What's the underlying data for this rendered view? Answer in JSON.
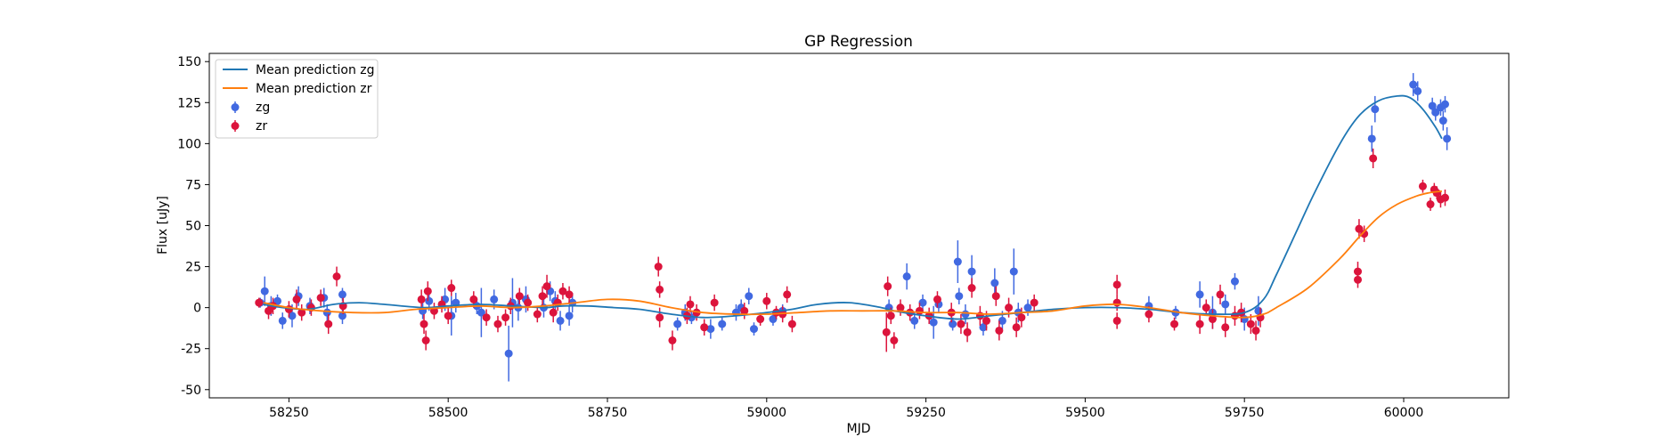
{
  "chart_data": {
    "type": "scatter",
    "title": "GP Regression",
    "xlabel": "MJD",
    "ylabel": "Flux [uJy]",
    "xlim": [
      58125,
      60165
    ],
    "ylim": [
      -55,
      155
    ],
    "xticks": [
      58250,
      58500,
      58750,
      59000,
      59250,
      59500,
      59750,
      60000
    ],
    "yticks": [
      -50,
      -25,
      0,
      25,
      50,
      75,
      100,
      125,
      150
    ],
    "grid": false,
    "legend_position": "top-left",
    "colors": {
      "zg": "#4169e1",
      "zr": "#dc143c",
      "mean_zg": "#1f77b4",
      "mean_zr": "#ff7f0e"
    },
    "series": [
      {
        "name": "Mean prediction zg",
        "kind": "line",
        "x": [
          58210,
          58240,
          58280,
          58320,
          58360,
          58400,
          58460,
          58500,
          58550,
          58600,
          58650,
          58680,
          58720,
          58760,
          58800,
          58850,
          58900,
          58950,
          59000,
          59040,
          59080,
          59130,
          59180,
          59200,
          59250,
          59300,
          59350,
          59400,
          59450,
          59500,
          59550,
          59600,
          59650,
          59700,
          59750,
          59780,
          59800,
          59830,
          59860,
          59900,
          59930,
          59960,
          59990,
          60010,
          60030,
          60050,
          60060
        ],
        "y": [
          2,
          0,
          -1,
          2,
          3,
          2,
          0,
          1,
          2,
          1,
          0,
          1,
          1,
          0,
          -1,
          -4,
          -6,
          -5,
          -3,
          -1,
          2,
          3,
          0,
          -2,
          -5,
          -7,
          -5,
          -3,
          -1,
          0,
          0,
          -1,
          -3,
          -4,
          -3,
          5,
          20,
          45,
          70,
          100,
          117,
          126,
          129,
          128,
          121,
          110,
          103
        ]
      },
      {
        "name": "Mean prediction zr",
        "kind": "line",
        "x": [
          58210,
          58250,
          58300,
          58350,
          58400,
          58450,
          58500,
          58550,
          58600,
          58650,
          58700,
          58750,
          58800,
          58850,
          58900,
          58950,
          59000,
          59050,
          59100,
          59150,
          59200,
          59250,
          59300,
          59350,
          59400,
          59450,
          59500,
          59550,
          59600,
          59650,
          59700,
          59750,
          59780,
          59800,
          59850,
          59900,
          59930,
          59960,
          59990,
          60020,
          60040,
          60060
        ],
        "y": [
          3,
          0,
          -2,
          -3,
          -3,
          -1,
          0,
          1,
          0,
          1,
          3,
          5,
          4,
          0,
          -3,
          -4,
          -4,
          -3,
          -2,
          -2,
          -2,
          -3,
          -3,
          -4,
          -3,
          -2,
          1,
          2,
          0,
          -3,
          -5,
          -6,
          -4,
          0,
          12,
          30,
          43,
          55,
          63,
          68,
          70,
          71
        ]
      },
      {
        "name": "zg",
        "kind": "errorbar",
        "points": [
          {
            "x": 58205,
            "y": 3,
            "err": 3
          },
          {
            "x": 58212,
            "y": 10,
            "err": 9
          },
          {
            "x": 58222,
            "y": 1,
            "err": 6
          },
          {
            "x": 58232,
            "y": 4,
            "err": 4
          },
          {
            "x": 58240,
            "y": -8,
            "err": 5
          },
          {
            "x": 58255,
            "y": -5,
            "err": 7
          },
          {
            "x": 58265,
            "y": 7,
            "err": 6
          },
          {
            "x": 58283,
            "y": 1,
            "err": 5
          },
          {
            "x": 58305,
            "y": 6,
            "err": 6
          },
          {
            "x": 58310,
            "y": -3,
            "err": 5
          },
          {
            "x": 58334,
            "y": 8,
            "err": 4
          },
          {
            "x": 58334,
            "y": -5,
            "err": 5
          },
          {
            "x": 58460,
            "y": -2,
            "err": 5
          },
          {
            "x": 58470,
            "y": 4,
            "err": 6
          },
          {
            "x": 58495,
            "y": 5,
            "err": 7
          },
          {
            "x": 58505,
            "y": -5,
            "err": 12
          },
          {
            "x": 58512,
            "y": 3,
            "err": 6
          },
          {
            "x": 58545,
            "y": 1,
            "err": 5
          },
          {
            "x": 58552,
            "y": -3,
            "err": 15
          },
          {
            "x": 58572,
            "y": 5,
            "err": 6
          },
          {
            "x": 58595,
            "y": -28,
            "err": 17
          },
          {
            "x": 58601,
            "y": 3,
            "err": 15
          },
          {
            "x": 58610,
            "y": 0,
            "err": 8
          },
          {
            "x": 58622,
            "y": 5,
            "err": 8
          },
          {
            "x": 58650,
            "y": 0,
            "err": 6
          },
          {
            "x": 58660,
            "y": 10,
            "err": 6
          },
          {
            "x": 58668,
            "y": 4,
            "err": 6
          },
          {
            "x": 58676,
            "y": -8,
            "err": 6
          },
          {
            "x": 58690,
            "y": -5,
            "err": 6
          },
          {
            "x": 58695,
            "y": 3,
            "err": 6
          },
          {
            "x": 58860,
            "y": -10,
            "err": 4
          },
          {
            "x": 58872,
            "y": -3,
            "err": 5
          },
          {
            "x": 58882,
            "y": -6,
            "err": 4
          },
          {
            "x": 58912,
            "y": -13,
            "err": 6
          },
          {
            "x": 58930,
            "y": -10,
            "err": 4
          },
          {
            "x": 58952,
            "y": -3,
            "err": 5
          },
          {
            "x": 58960,
            "y": 0,
            "err": 5
          },
          {
            "x": 58972,
            "y": 7,
            "err": 5
          },
          {
            "x": 58980,
            "y": -13,
            "err": 4
          },
          {
            "x": 59010,
            "y": -7,
            "err": 4
          },
          {
            "x": 59025,
            "y": -2,
            "err": 4
          },
          {
            "x": 59192,
            "y": 0,
            "err": 5
          },
          {
            "x": 59220,
            "y": 19,
            "err": 8
          },
          {
            "x": 59232,
            "y": -8,
            "err": 5
          },
          {
            "x": 59245,
            "y": 3,
            "err": 5
          },
          {
            "x": 59262,
            "y": -9,
            "err": 10
          },
          {
            "x": 59270,
            "y": 2,
            "err": 5
          },
          {
            "x": 59292,
            "y": -10,
            "err": 4
          },
          {
            "x": 59300,
            "y": 28,
            "err": 13
          },
          {
            "x": 59302,
            "y": 7,
            "err": 5
          },
          {
            "x": 59312,
            "y": -4,
            "err": 6
          },
          {
            "x": 59322,
            "y": 22,
            "err": 10
          },
          {
            "x": 59340,
            "y": -12,
            "err": 5
          },
          {
            "x": 59358,
            "y": 15,
            "err": 9
          },
          {
            "x": 59370,
            "y": -8,
            "err": 6
          },
          {
            "x": 59388,
            "y": 22,
            "err": 14
          },
          {
            "x": 59395,
            "y": -3,
            "err": 6
          },
          {
            "x": 59410,
            "y": 0,
            "err": 5
          },
          {
            "x": 59600,
            "y": 1,
            "err": 6
          },
          {
            "x": 59642,
            "y": -3,
            "err": 4
          },
          {
            "x": 59680,
            "y": 8,
            "err": 8
          },
          {
            "x": 59700,
            "y": -3,
            "err": 10
          },
          {
            "x": 59720,
            "y": 2,
            "err": 6
          },
          {
            "x": 59735,
            "y": 16,
            "err": 5
          },
          {
            "x": 59750,
            "y": -7,
            "err": 7
          },
          {
            "x": 59772,
            "y": -2,
            "err": 9
          },
          {
            "x": 59950,
            "y": 103,
            "err": 8
          },
          {
            "x": 59955,
            "y": 121,
            "err": 8
          },
          {
            "x": 60015,
            "y": 136,
            "err": 7
          },
          {
            "x": 60022,
            "y": 132,
            "err": 6
          },
          {
            "x": 60045,
            "y": 123,
            "err": 5
          },
          {
            "x": 60050,
            "y": 119,
            "err": 5
          },
          {
            "x": 60058,
            "y": 122,
            "err": 5
          },
          {
            "x": 60062,
            "y": 114,
            "err": 6
          },
          {
            "x": 60065,
            "y": 124,
            "err": 5
          },
          {
            "x": 60068,
            "y": 103,
            "err": 7
          }
        ]
      },
      {
        "name": "zr",
        "kind": "errorbar",
        "points": [
          {
            "x": 58203,
            "y": 3,
            "err": 3
          },
          {
            "x": 58218,
            "y": -2,
            "err": 5
          },
          {
            "x": 58225,
            "y": 1,
            "err": 5
          },
          {
            "x": 58250,
            "y": -1,
            "err": 5
          },
          {
            "x": 58262,
            "y": 5,
            "err": 6
          },
          {
            "x": 58270,
            "y": -3,
            "err": 5
          },
          {
            "x": 58285,
            "y": 0,
            "err": 5
          },
          {
            "x": 58300,
            "y": 6,
            "err": 5
          },
          {
            "x": 58312,
            "y": -10,
            "err": 6
          },
          {
            "x": 58325,
            "y": 19,
            "err": 6
          },
          {
            "x": 58335,
            "y": 1,
            "err": 5
          },
          {
            "x": 58458,
            "y": 5,
            "err": 6
          },
          {
            "x": 58462,
            "y": -10,
            "err": 6
          },
          {
            "x": 58465,
            "y": -20,
            "err": 6
          },
          {
            "x": 58468,
            "y": 10,
            "err": 6
          },
          {
            "x": 58478,
            "y": -2,
            "err": 5
          },
          {
            "x": 58490,
            "y": 2,
            "err": 5
          },
          {
            "x": 58500,
            "y": -5,
            "err": 5
          },
          {
            "x": 58505,
            "y": 12,
            "err": 5
          },
          {
            "x": 58540,
            "y": 5,
            "err": 5
          },
          {
            "x": 58560,
            "y": -6,
            "err": 5
          },
          {
            "x": 58578,
            "y": -10,
            "err": 5
          },
          {
            "x": 58590,
            "y": -6,
            "err": 5
          },
          {
            "x": 58598,
            "y": 1,
            "err": 5
          },
          {
            "x": 58612,
            "y": 7,
            "err": 5
          },
          {
            "x": 58625,
            "y": 3,
            "err": 5
          },
          {
            "x": 58640,
            "y": -4,
            "err": 5
          },
          {
            "x": 58648,
            "y": 7,
            "err": 6
          },
          {
            "x": 58655,
            "y": 13,
            "err": 7
          },
          {
            "x": 58665,
            "y": -3,
            "err": 6
          },
          {
            "x": 58672,
            "y": 3,
            "err": 5
          },
          {
            "x": 58680,
            "y": 10,
            "err": 5
          },
          {
            "x": 58690,
            "y": 8,
            "err": 5
          },
          {
            "x": 58830,
            "y": 25,
            "err": 6
          },
          {
            "x": 58832,
            "y": 11,
            "err": 5
          },
          {
            "x": 58832,
            "y": -6,
            "err": 6
          },
          {
            "x": 58852,
            "y": -20,
            "err": 6
          },
          {
            "x": 58875,
            "y": -5,
            "err": 5
          },
          {
            "x": 58880,
            "y": 2,
            "err": 5
          },
          {
            "x": 58890,
            "y": -3,
            "err": 5
          },
          {
            "x": 58902,
            "y": -12,
            "err": 5
          },
          {
            "x": 58918,
            "y": 3,
            "err": 5
          },
          {
            "x": 58965,
            "y": -2,
            "err": 5
          },
          {
            "x": 58990,
            "y": -7,
            "err": 4
          },
          {
            "x": 59000,
            "y": 4,
            "err": 5
          },
          {
            "x": 59015,
            "y": -3,
            "err": 4
          },
          {
            "x": 59025,
            "y": -4,
            "err": 5
          },
          {
            "x": 59032,
            "y": 8,
            "err": 5
          },
          {
            "x": 59040,
            "y": -10,
            "err": 5
          },
          {
            "x": 59188,
            "y": -15,
            "err": 12
          },
          {
            "x": 59190,
            "y": 13,
            "err": 6
          },
          {
            "x": 59195,
            "y": -5,
            "err": 5
          },
          {
            "x": 59200,
            "y": -20,
            "err": 5
          },
          {
            "x": 59210,
            "y": 0,
            "err": 5
          },
          {
            "x": 59225,
            "y": -3,
            "err": 5
          },
          {
            "x": 59240,
            "y": -2,
            "err": 5
          },
          {
            "x": 59255,
            "y": -5,
            "err": 5
          },
          {
            "x": 59268,
            "y": 5,
            "err": 5
          },
          {
            "x": 59290,
            "y": -3,
            "err": 6
          },
          {
            "x": 59305,
            "y": -10,
            "err": 6
          },
          {
            "x": 59315,
            "y": -15,
            "err": 6
          },
          {
            "x": 59322,
            "y": 12,
            "err": 6
          },
          {
            "x": 59335,
            "y": -5,
            "err": 6
          },
          {
            "x": 59345,
            "y": -8,
            "err": 6
          },
          {
            "x": 59360,
            "y": 7,
            "err": 6
          },
          {
            "x": 59365,
            "y": -14,
            "err": 6
          },
          {
            "x": 59380,
            "y": 0,
            "err": 6
          },
          {
            "x": 59392,
            "y": -12,
            "err": 6
          },
          {
            "x": 59400,
            "y": -6,
            "err": 6
          },
          {
            "x": 59420,
            "y": 3,
            "err": 5
          },
          {
            "x": 59550,
            "y": 14,
            "err": 6
          },
          {
            "x": 59550,
            "y": 3,
            "err": 5
          },
          {
            "x": 59550,
            "y": -8,
            "err": 5
          },
          {
            "x": 59600,
            "y": -4,
            "err": 5
          },
          {
            "x": 59640,
            "y": -10,
            "err": 4
          },
          {
            "x": 59680,
            "y": -10,
            "err": 6
          },
          {
            "x": 59690,
            "y": 0,
            "err": 5
          },
          {
            "x": 59700,
            "y": -7,
            "err": 6
          },
          {
            "x": 59712,
            "y": 8,
            "err": 6
          },
          {
            "x": 59720,
            "y": -12,
            "err": 6
          },
          {
            "x": 59735,
            "y": -5,
            "err": 6
          },
          {
            "x": 59745,
            "y": -3,
            "err": 6
          },
          {
            "x": 59760,
            "y": -10,
            "err": 6
          },
          {
            "x": 59768,
            "y": -14,
            "err": 6
          },
          {
            "x": 59775,
            "y": -6,
            "err": 6
          },
          {
            "x": 59928,
            "y": 22,
            "err": 6
          },
          {
            "x": 59928,
            "y": 17,
            "err": 5
          },
          {
            "x": 59930,
            "y": 48,
            "err": 6
          },
          {
            "x": 59938,
            "y": 45,
            "err": 5
          },
          {
            "x": 59952,
            "y": 91,
            "err": 6
          },
          {
            "x": 60030,
            "y": 74,
            "err": 4
          },
          {
            "x": 60042,
            "y": 63,
            "err": 4
          },
          {
            "x": 60048,
            "y": 72,
            "err": 4
          },
          {
            "x": 60052,
            "y": 70,
            "err": 4
          },
          {
            "x": 60058,
            "y": 66,
            "err": 5
          },
          {
            "x": 60065,
            "y": 67,
            "err": 5
          }
        ]
      }
    ]
  }
}
